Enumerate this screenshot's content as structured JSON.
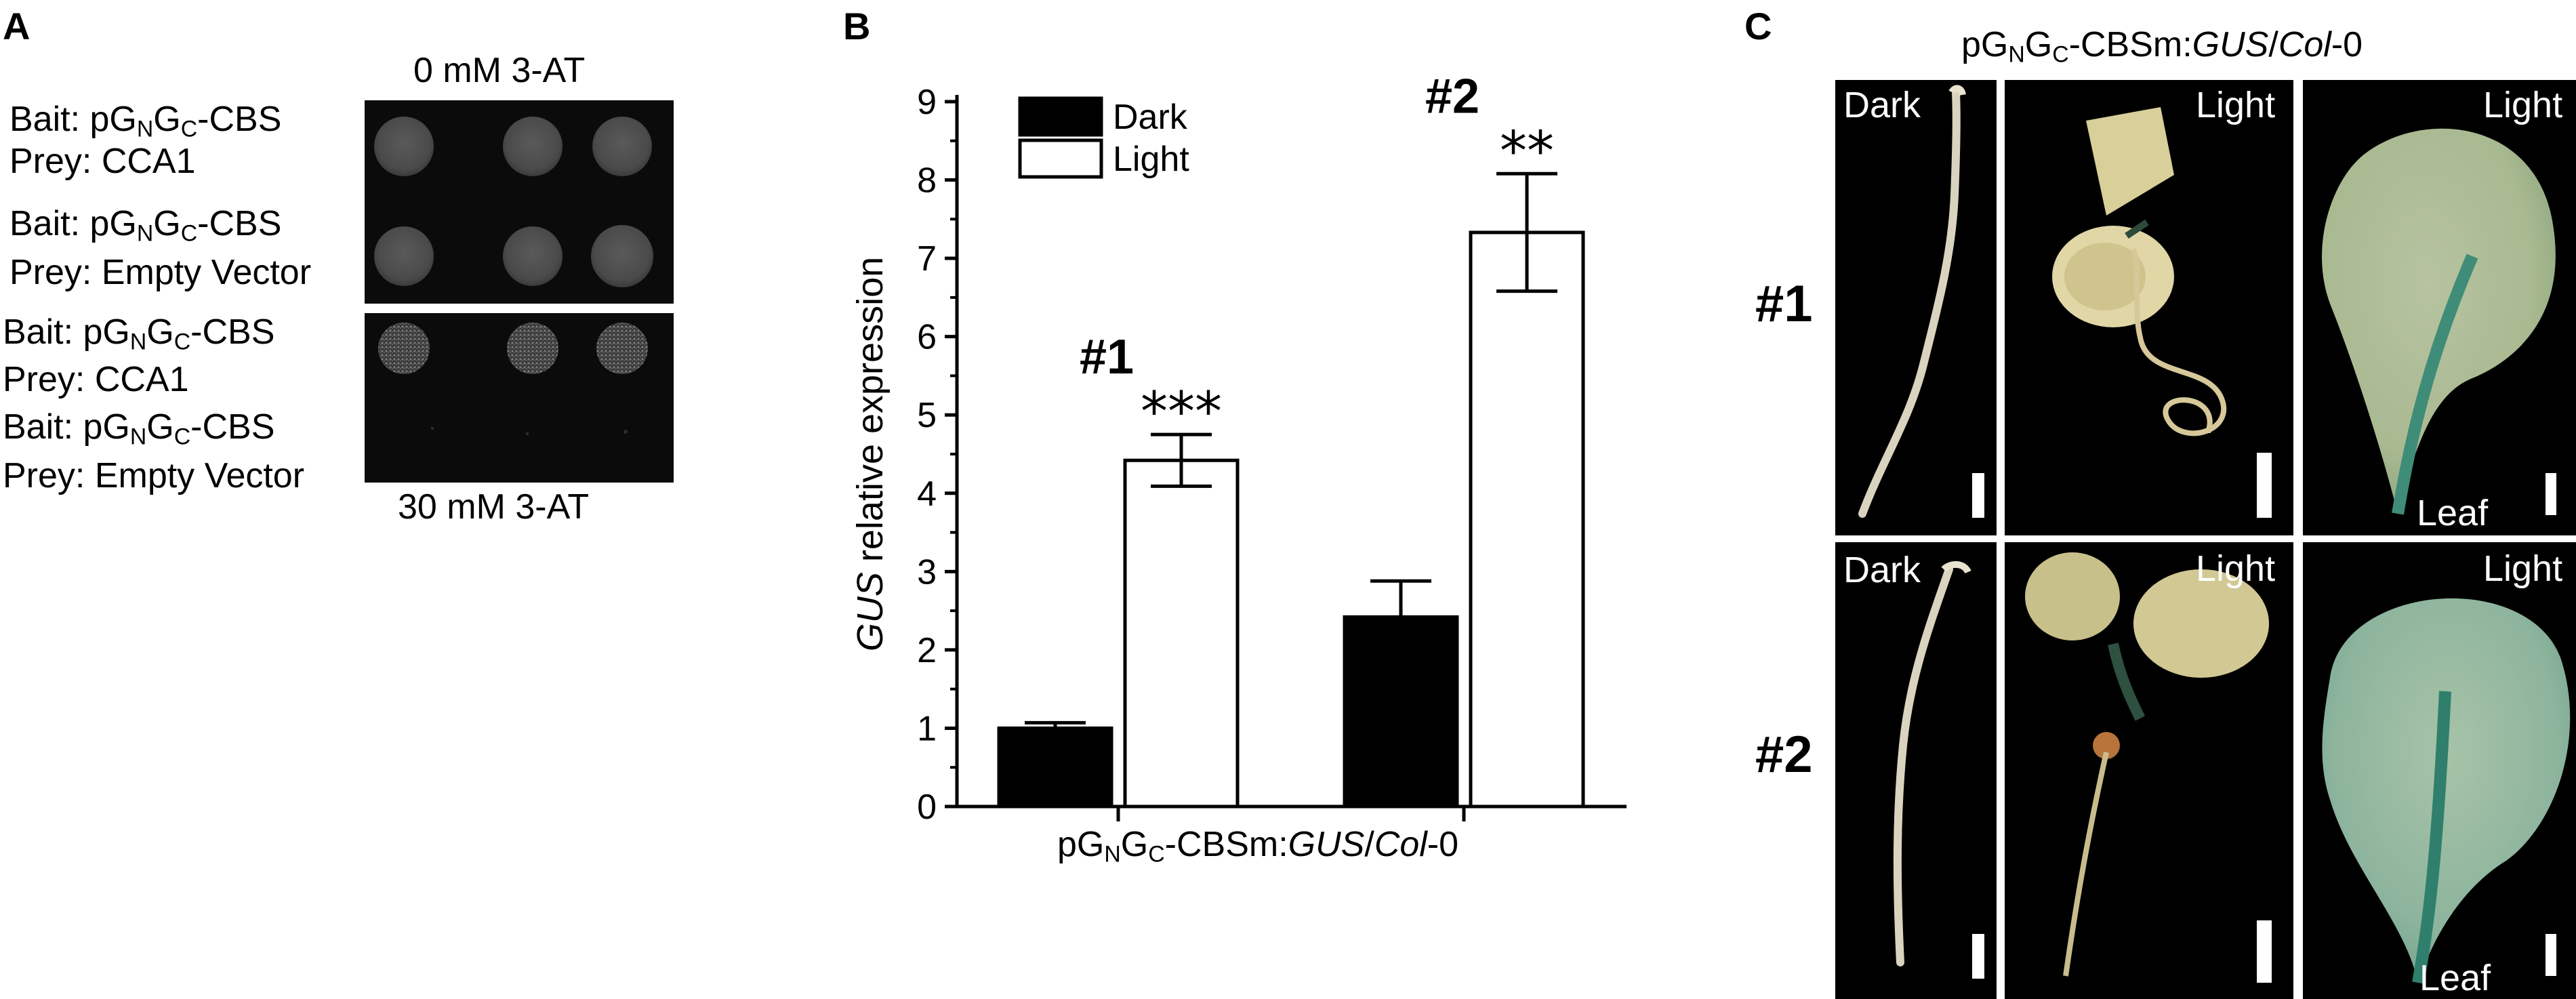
{
  "panels": {
    "a": "A",
    "b": "B",
    "c": "C"
  },
  "panel_a": {
    "top_label": "0 mM 3-AT",
    "bottom_label": "30 mM 3-AT",
    "rows": [
      {
        "bait_prefix": "Bait: pG",
        "bait_n": "N",
        "bait_g": "G",
        "bait_c": "C",
        "bait_suffix": "-CBS",
        "prey": "Prey: CCA1"
      },
      {
        "bait_prefix": "Bait: pG",
        "bait_n": "N",
        "bait_g": "G",
        "bait_c": "C",
        "bait_suffix": "-CBS",
        "prey": "Prey: Empty Vector"
      },
      {
        "bait_prefix": "Bait: pG",
        "bait_n": "N",
        "bait_g": "G",
        "bait_c": "C",
        "bait_suffix": "-CBS",
        "prey": "Prey: CCA1"
      },
      {
        "bait_prefix": "Bait: pG",
        "bait_n": "N",
        "bait_g": "G",
        "bait_c": "C",
        "bait_suffix": "-CBS",
        "prey": "Prey: Empty Vector"
      }
    ]
  },
  "chart_data": {
    "type": "bar",
    "title": "",
    "ylabel_italic": "GUS",
    "ylabel_rest": " relative expression",
    "xlabel": {
      "prefix": "pG",
      "sub_n": "N",
      "g": "G",
      "sub_c": "C",
      "mid": "-CBSm:",
      "gus": "GUS",
      "slash": "/",
      "col": "Col",
      "tail": "-0"
    },
    "ylim": [
      0,
      9
    ],
    "yticks": [
      "0",
      "1",
      "2",
      "3",
      "4",
      "5",
      "6",
      "7",
      "8",
      "9"
    ],
    "legend_position": "top-left",
    "categories": [
      "#1",
      "#2"
    ],
    "series": [
      {
        "name": "Dark",
        "color": "#000000",
        "values": [
          1.0,
          2.42
        ],
        "errors": [
          0.07,
          0.46
        ]
      },
      {
        "name": "Light",
        "color": "#ffffff",
        "values": [
          4.42,
          7.33
        ],
        "errors": [
          0.33,
          0.75
        ]
      }
    ],
    "significance": [
      "***",
      "**"
    ]
  },
  "panel_c": {
    "title": {
      "prefix": "pG",
      "sub_n": "N",
      "g": "G",
      "sub_c": "C",
      "mid": "-CBSm:",
      "gus": "GUS",
      "slash": "/",
      "col": "Col",
      "tail": "-0"
    },
    "row_labels": [
      "#1",
      "#2"
    ],
    "photos": [
      {
        "label": "Dark"
      },
      {
        "label": "Light"
      },
      {
        "label": "Light",
        "sub": "Leaf"
      },
      {
        "label": "Dark"
      },
      {
        "label": "Light"
      },
      {
        "label": "Light",
        "sub": "Leaf"
      }
    ]
  }
}
